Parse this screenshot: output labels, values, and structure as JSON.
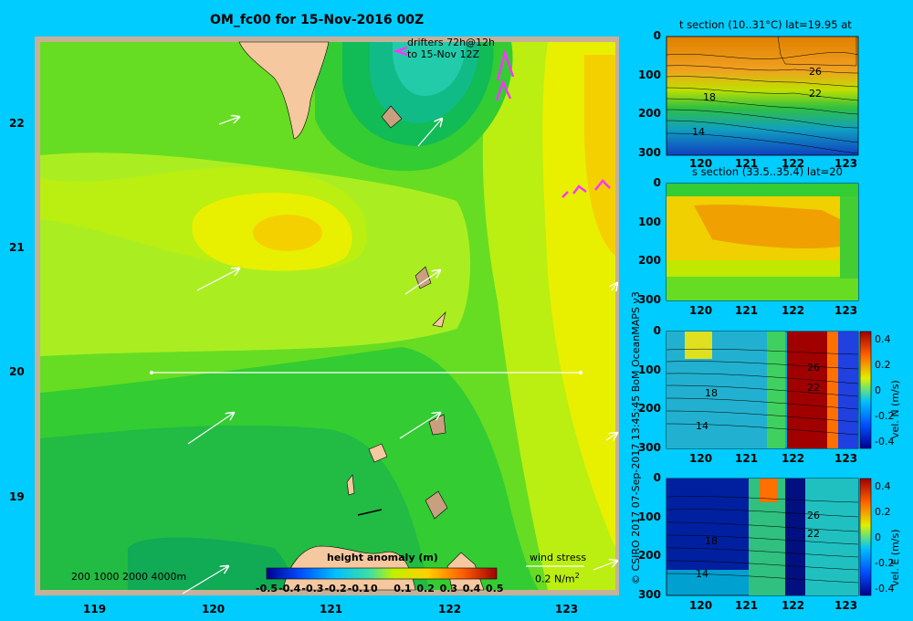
{
  "map": {
    "title": "OM_fc00 for 15-Nov-2016 00Z",
    "drifters_label_line1": "drifters 72h@12h",
    "drifters_label_line2": "to 15-Nov 12Z",
    "lat_ticks": [
      "22",
      "21",
      "20",
      "19"
    ],
    "lon_ticks": [
      "119",
      "120",
      "121",
      "122",
      "123"
    ],
    "depth_legend": "200  1000  2000  4000m",
    "colorbar_title": "height anomaly  (m)",
    "colorbar_ticks": [
      "-0.5",
      "-0.4",
      "-0.3",
      "-0.2",
      "-0.1",
      "0",
      "0.1",
      "0.2",
      "0.3",
      "0.4",
      "0.5"
    ],
    "wind_label": "wind stress",
    "wind_scale": "0.2 N/m",
    "wind_scale_sup": "2",
    "colors": {
      "background": "#00ccff",
      "land": "#f5c8a0",
      "section_line": "#ffffff",
      "drifter": "#ff33ff"
    }
  },
  "credit": "© CSIRO 2017   07-Sep-2017 13:45:45 BoM OceanMAPS v3",
  "panels": [
    {
      "title": "t section (10..31°C) lat=19.95 at",
      "y_ticks": [
        "0",
        "100",
        "200",
        "300"
      ],
      "x_ticks": [
        "120",
        "121",
        "122",
        "123"
      ],
      "contour_labels": [
        "26",
        "22",
        "18",
        "14"
      ]
    },
    {
      "title": "s section (33.5..35.4) lat=20",
      "y_ticks": [
        "0",
        "100",
        "200",
        "300"
      ],
      "x_ticks": [
        "120",
        "121",
        "122",
        "123"
      ]
    },
    {
      "title": "",
      "y_ticks": [
        "0",
        "100",
        "200",
        "300"
      ],
      "x_ticks": [
        "120",
        "121",
        "122",
        "123"
      ],
      "contour_labels": [
        "26",
        "22",
        "18",
        "14"
      ],
      "cbar_label": "vel. N  (m/s)",
      "cbar_ticks": [
        "0.4",
        "0.2",
        "0",
        "-0.2",
        "-0.4"
      ]
    },
    {
      "title": "",
      "y_ticks": [
        "0",
        "100",
        "200",
        "300"
      ],
      "x_ticks": [
        "120",
        "121",
        "122",
        "123"
      ],
      "contour_labels": [
        "26",
        "22",
        "18",
        "14"
      ],
      "cbar_label": "vel. E  (m/s)",
      "cbar_ticks": [
        "0.4",
        "0.2",
        "0",
        "-0.2",
        "-0.4"
      ]
    }
  ]
}
